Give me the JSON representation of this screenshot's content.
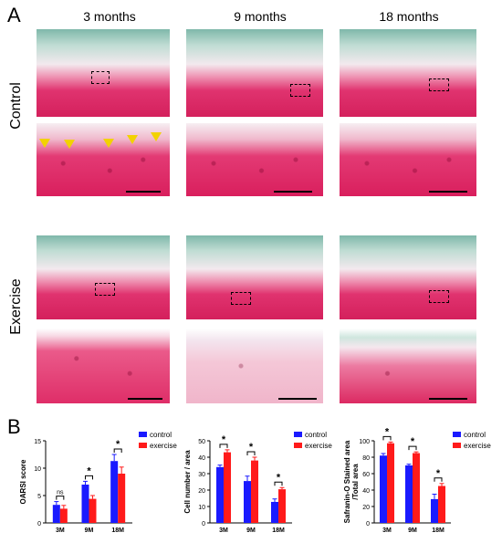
{
  "panel_a": {
    "letter": "A",
    "columns": [
      "3  months",
      "9  months",
      "18  months"
    ],
    "rows": [
      "Control",
      "Exercise"
    ]
  },
  "panel_b": {
    "letter": "B"
  },
  "colors": {
    "control": "#1a1aff",
    "exercise": "#ff1a1a"
  },
  "chart_data": [
    {
      "type": "bar",
      "categories": [
        "3M",
        "9M",
        "18M"
      ],
      "ylabel": "OARSI score",
      "ylim": [
        0,
        15
      ],
      "yticks": [
        "0",
        "5",
        "10",
        "15"
      ],
      "series": [
        {
          "name": "control",
          "values": [
            3.3,
            7.0,
            11.3
          ],
          "errors": [
            0.6,
            0.6,
            1.2
          ]
        },
        {
          "name": "exercise",
          "values": [
            2.6,
            4.4,
            9.0
          ],
          "errors": [
            0.6,
            0.6,
            1.2
          ]
        }
      ],
      "significance": [
        "ns",
        "*",
        "*"
      ]
    },
    {
      "type": "bar",
      "categories": [
        "3M",
        "9M",
        "18M"
      ],
      "ylabel": "Cell number / area",
      "ylim": [
        0,
        50
      ],
      "yticks": [
        "0",
        "10",
        "20",
        "30",
        "40",
        "50"
      ],
      "series": [
        {
          "name": "control",
          "values": [
            34,
            25.5,
            12.8
          ],
          "errors": [
            1.2,
            3.0,
            1.8
          ]
        },
        {
          "name": "exercise",
          "values": [
            43,
            38,
            20.5
          ],
          "errors": [
            1.5,
            2.0,
            1.0
          ]
        }
      ],
      "significance": [
        "*",
        "*",
        "*"
      ]
    },
    {
      "type": "bar",
      "categories": [
        "3M",
        "9M",
        "18M"
      ],
      "ylabel": "Safranin-O Stained area /Total area",
      "ylabel_lines": [
        "Safranin-O Stained area",
        "/Total area"
      ],
      "ylim": [
        0,
        100
      ],
      "yticks": [
        "0",
        "20",
        "40",
        "60",
        "80",
        "100"
      ],
      "series": [
        {
          "name": "control",
          "values": [
            82,
            70,
            29
          ],
          "errors": [
            2.5,
            1.5,
            6.0
          ]
        },
        {
          "name": "exercise",
          "values": [
            97,
            85,
            45
          ],
          "errors": [
            1.5,
            1.5,
            3.0
          ]
        }
      ],
      "significance": [
        "*",
        "*",
        "*"
      ]
    }
  ]
}
